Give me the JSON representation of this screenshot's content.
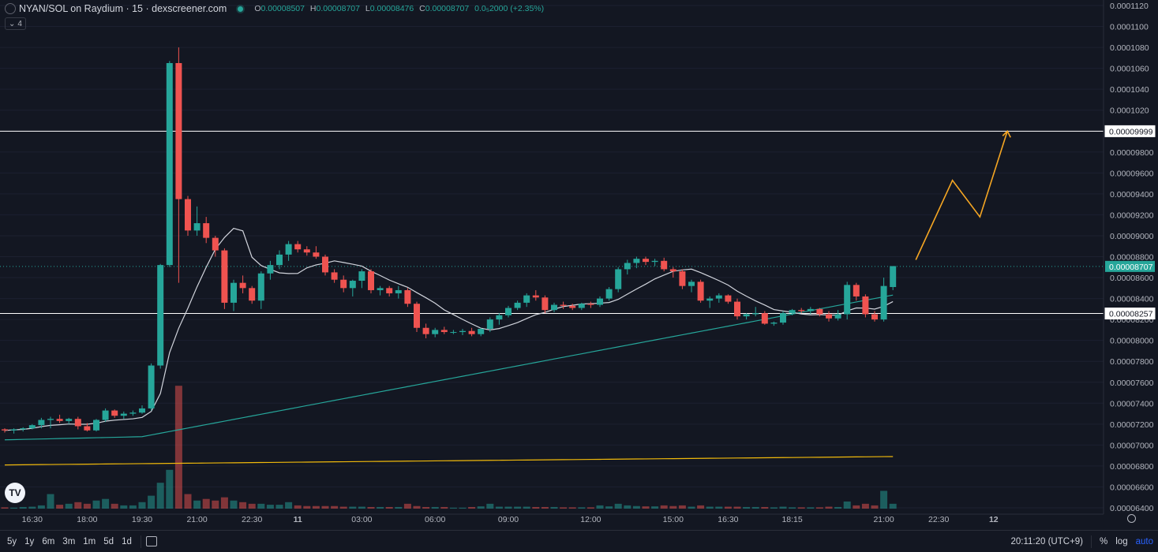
{
  "header": {
    "symbol": "NYAN/SOL on Raydium · 15 · dexscreener.com",
    "o_label": "O",
    "o_value": "0.00008507",
    "h_label": "H",
    "h_value": "0.00008707",
    "l_label": "L",
    "l_value": "0.00008476",
    "c_label": "C",
    "c_value": "0.00008707",
    "change": "0.0₅2000 (+2.35%)"
  },
  "indicator_toggle": "4",
  "bottom": {
    "ranges": [
      "5y",
      "1y",
      "6m",
      "3m",
      "1m",
      "5d",
      "1d"
    ],
    "clock": "20:11:20 (UTC+9)",
    "percent": "%",
    "log": "log",
    "auto": "auto"
  },
  "logo_text": "TV",
  "colors": {
    "background": "#131722",
    "up": "#26a69a",
    "down": "#ef5350",
    "ma_fast": "#d1d4dc",
    "ma_mid": "#26a69a",
    "ma_slow": "#f0b90b",
    "projection": "#f5a623"
  },
  "chart_data": {
    "type": "candlestick",
    "yticks": [
      "0.0001120",
      "0.0001100",
      "0.0001080",
      "0.0001060",
      "0.0001040",
      "0.0001020",
      "0.0001000",
      "0.00009800",
      "0.00009600",
      "0.00009400",
      "0.00009200",
      "0.00009000",
      "0.00008800",
      "0.00008600",
      "0.00008400",
      "0.00008200",
      "0.00008000",
      "0.00007800",
      "0.00007600",
      "0.00007400",
      "0.00007200",
      "0.00007000",
      "0.00006800",
      "0.00006600",
      "0.00006400"
    ],
    "ytick_values": [
      0.000112,
      0.00011,
      0.000108,
      0.000106,
      0.000104,
      0.000102,
      0.0001,
      9.8e-05,
      9.6e-05,
      9.4e-05,
      9.2e-05,
      9e-05,
      8.8e-05,
      8.6e-05,
      8.4e-05,
      8.2e-05,
      8e-05,
      7.8e-05,
      7.6e-05,
      7.4e-05,
      7.2e-05,
      7e-05,
      6.8e-05,
      6.6e-05,
      6.4e-05
    ],
    "ylim": [
      6.4e-05,
      0.0001125
    ],
    "xticks": [
      "16:30",
      "18:00",
      "19:30",
      "21:00",
      "22:30",
      "11",
      "03:00",
      "06:00",
      "09:00",
      "12:00",
      "15:00",
      "16:30",
      "18:15",
      "21:00",
      "22:30",
      "12"
    ],
    "xtick_index": [
      3,
      9,
      15,
      21,
      27,
      32,
      39,
      47,
      55,
      64,
      73,
      79,
      86,
      96,
      102,
      108
    ],
    "horizontal_lines": [
      {
        "price": 9.999e-05,
        "label": "0.00009999"
      },
      {
        "price": 8.257e-05,
        "label": "0.00008257"
      }
    ],
    "last_price": {
      "price": 8.707e-05,
      "label": "0.00008707"
    },
    "candles": [
      [
        7.15e-05,
        7.16e-05,
        7.12e-05,
        7.14e-05,
        0.4
      ],
      [
        7.14e-05,
        7.16e-05,
        7.11e-05,
        7.15e-05,
        0.3
      ],
      [
        7.15e-05,
        7.17e-05,
        7.13e-05,
        7.16e-05,
        0.5
      ],
      [
        7.16e-05,
        7.2e-05,
        7.15e-05,
        7.19e-05,
        0.6
      ],
      [
        7.19e-05,
        7.26e-05,
        7.16e-05,
        7.24e-05,
        1.0
      ],
      [
        7.24e-05,
        7.27e-05,
        7.16e-05,
        7.25e-05,
        4.5
      ],
      [
        7.25e-05,
        7.29e-05,
        7.21e-05,
        7.23e-05,
        1.2
      ],
      [
        7.23e-05,
        7.26e-05,
        7.2e-05,
        7.25e-05,
        1.5
      ],
      [
        7.25e-05,
        7.27e-05,
        7.15e-05,
        7.18e-05,
        2.0
      ],
      [
        7.18e-05,
        7.21e-05,
        7.13e-05,
        7.14e-05,
        1.5
      ],
      [
        7.14e-05,
        7.25e-05,
        7.13e-05,
        7.24e-05,
        2.5
      ],
      [
        7.24e-05,
        7.35e-05,
        7.22e-05,
        7.33e-05,
        3.0
      ],
      [
        7.33e-05,
        7.34e-05,
        7.26e-05,
        7.28e-05,
        1.5
      ],
      [
        7.28e-05,
        7.32e-05,
        7.25e-05,
        7.3e-05,
        1.0
      ],
      [
        7.3e-05,
        7.33e-05,
        7.28e-05,
        7.31e-05,
        1.0
      ],
      [
        7.31e-05,
        7.38e-05,
        7.3e-05,
        7.35e-05,
        2.0
      ],
      [
        7.35e-05,
        7.78e-05,
        7.33e-05,
        7.76e-05,
        4.0
      ],
      [
        7.76e-05,
        8.73e-05,
        7.73e-05,
        8.72e-05,
        8.0
      ],
      [
        8.72e-05,
        0.0001067,
        8.7e-05,
        0.0001065,
        12.0
      ],
      [
        0.0001065,
        0.000108,
        8.55e-05,
        9.35e-05,
        38.0
      ],
      [
        9.35e-05,
        9.38e-05,
        9e-05,
        9.05e-05,
        4.5
      ],
      [
        9.05e-05,
        9.28e-05,
        9e-05,
        9.12e-05,
        2.5
      ],
      [
        9.12e-05,
        9.18e-05,
        8.93e-05,
        8.98e-05,
        3.0
      ],
      [
        8.98e-05,
        9e-05,
        8.8e-05,
        8.86e-05,
        2.5
      ],
      [
        8.86e-05,
        8.88e-05,
        8.3e-05,
        8.36e-05,
        3.5
      ],
      [
        8.36e-05,
        8.58e-05,
        8.28e-05,
        8.55e-05,
        2.5
      ],
      [
        8.55e-05,
        8.62e-05,
        8.45e-05,
        8.5e-05,
        2.0
      ],
      [
        8.5e-05,
        8.52e-05,
        8.35e-05,
        8.38e-05,
        1.5
      ],
      [
        8.38e-05,
        8.66e-05,
        8.3e-05,
        8.64e-05,
        1.5
      ],
      [
        8.64e-05,
        8.76e-05,
        8.58e-05,
        8.72e-05,
        1.2
      ],
      [
        8.72e-05,
        8.86e-05,
        8.68e-05,
        8.82e-05,
        1.2
      ],
      [
        8.82e-05,
        8.95e-05,
        8.76e-05,
        8.92e-05,
        2.0
      ],
      [
        8.92e-05,
        8.95e-05,
        8.84e-05,
        8.87e-05,
        1.0
      ],
      [
        8.87e-05,
        8.9e-05,
        8.81e-05,
        8.84e-05,
        0.8
      ],
      [
        8.84e-05,
        8.9e-05,
        8.78e-05,
        8.8e-05,
        0.8
      ],
      [
        8.8e-05,
        8.82e-05,
        8.62e-05,
        8.65e-05,
        0.8
      ],
      [
        8.65e-05,
        8.68e-05,
        8.55e-05,
        8.58e-05,
        0.8
      ],
      [
        8.58e-05,
        8.62e-05,
        8.46e-05,
        8.5e-05,
        0.6
      ],
      [
        8.5e-05,
        8.58e-05,
        8.42e-05,
        8.57e-05,
        0.6
      ],
      [
        8.57e-05,
        8.68e-05,
        8.5e-05,
        8.66e-05,
        0.6
      ],
      [
        8.66e-05,
        8.68e-05,
        8.45e-05,
        8.48e-05,
        0.5
      ],
      [
        8.48e-05,
        8.52e-05,
        8.43e-05,
        8.5e-05,
        0.5
      ],
      [
        8.5e-05,
        8.52e-05,
        8.42e-05,
        8.45e-05,
        0.5
      ],
      [
        8.45e-05,
        8.52e-05,
        8.4e-05,
        8.48e-05,
        0.5
      ],
      [
        8.48e-05,
        8.5e-05,
        8.32e-05,
        8.35e-05,
        1.5
      ],
      [
        8.35e-05,
        8.37e-05,
        8.08e-05,
        8.12e-05,
        0.8
      ],
      [
        8.12e-05,
        8.16e-05,
        8.02e-05,
        8.06e-05,
        0.5
      ],
      [
        8.06e-05,
        8.12e-05,
        8.03e-05,
        8.1e-05,
        0.5
      ],
      [
        8.1e-05,
        8.13e-05,
        8.06e-05,
        8.08e-05,
        0.5
      ],
      [
        8.08e-05,
        8.1e-05,
        8.06e-05,
        8.08e-05,
        0.3
      ],
      [
        8.08e-05,
        8.11e-05,
        8.05e-05,
        8.09e-05,
        0.3
      ],
      [
        8.09e-05,
        8.12e-05,
        8.04e-05,
        8.06e-05,
        0.5
      ],
      [
        8.06e-05,
        8.12e-05,
        8.04e-05,
        8.11e-05,
        0.7
      ],
      [
        8.11e-05,
        8.22e-05,
        8.08e-05,
        8.2e-05,
        1.5
      ],
      [
        8.2e-05,
        8.26e-05,
        8.15e-05,
        8.24e-05,
        0.6
      ],
      [
        8.24e-05,
        8.33e-05,
        8.22e-05,
        8.31e-05,
        0.6
      ],
      [
        8.31e-05,
        8.38e-05,
        8.29e-05,
        8.36e-05,
        0.6
      ],
      [
        8.36e-05,
        8.45e-05,
        8.32e-05,
        8.43e-05,
        0.6
      ],
      [
        8.43e-05,
        8.48e-05,
        8.38e-05,
        8.41e-05,
        0.5
      ],
      [
        8.41e-05,
        8.43e-05,
        8.26e-05,
        8.29e-05,
        0.5
      ],
      [
        8.29e-05,
        8.36e-05,
        8.27e-05,
        8.34e-05,
        0.5
      ],
      [
        8.34e-05,
        8.37e-05,
        8.3e-05,
        8.33e-05,
        0.4
      ],
      [
        8.33e-05,
        8.35e-05,
        8.29e-05,
        8.31e-05,
        0.4
      ],
      [
        8.31e-05,
        8.36e-05,
        8.29e-05,
        8.35e-05,
        0.4
      ],
      [
        8.35e-05,
        8.37e-05,
        8.31e-05,
        8.34e-05,
        0.4
      ],
      [
        8.34e-05,
        8.42e-05,
        8.32e-05,
        8.4e-05,
        1.0
      ],
      [
        8.4e-05,
        8.51e-05,
        8.38e-05,
        8.49e-05,
        0.7
      ],
      [
        8.49e-05,
        8.7e-05,
        8.46e-05,
        8.68e-05,
        1.5
      ],
      [
        8.68e-05,
        8.77e-05,
        8.63e-05,
        8.74e-05,
        1.0
      ],
      [
        8.74e-05,
        8.8e-05,
        8.69e-05,
        8.78e-05,
        0.8
      ],
      [
        8.78e-05,
        8.8e-05,
        8.72e-05,
        8.75e-05,
        0.7
      ],
      [
        8.75e-05,
        8.78e-05,
        8.71e-05,
        8.76e-05,
        0.7
      ],
      [
        8.76e-05,
        8.79e-05,
        8.66e-05,
        8.68e-05,
        1.0
      ],
      [
        8.68e-05,
        8.7e-05,
        8.6e-05,
        8.66e-05,
        0.8
      ],
      [
        8.66e-05,
        8.68e-05,
        8.49e-05,
        8.52e-05,
        1.0
      ],
      [
        8.52e-05,
        8.58e-05,
        8.46e-05,
        8.56e-05,
        0.6
      ],
      [
        8.56e-05,
        8.58e-05,
        8.36e-05,
        8.38e-05,
        1.0
      ],
      [
        8.38e-05,
        8.42e-05,
        8.31e-05,
        8.4e-05,
        0.6
      ],
      [
        8.4e-05,
        8.45e-05,
        8.36e-05,
        8.43e-05,
        0.6
      ],
      [
        8.43e-05,
        8.44e-05,
        8.35e-05,
        8.37e-05,
        0.6
      ],
      [
        8.37e-05,
        8.4e-05,
        8.2e-05,
        8.23e-05,
        0.6
      ],
      [
        8.23e-05,
        8.26e-05,
        8.2e-05,
        8.25e-05,
        0.5
      ],
      [
        8.25e-05,
        8.32e-05,
        8.23e-05,
        8.26e-05,
        0.5
      ],
      [
        8.26e-05,
        8.28e-05,
        8.15e-05,
        8.16e-05,
        0.5
      ],
      [
        8.16e-05,
        8.18e-05,
        8.14e-05,
        8.17e-05,
        0.4
      ],
      [
        8.17e-05,
        8.28e-05,
        8.15e-05,
        8.26e-05,
        0.6
      ],
      [
        8.26e-05,
        8.3e-05,
        8.24e-05,
        8.29e-05,
        0.4
      ],
      [
        8.29e-05,
        8.31e-05,
        8.26e-05,
        8.28e-05,
        0.4
      ],
      [
        8.28e-05,
        8.32e-05,
        8.25e-05,
        8.3e-05,
        0.4
      ],
      [
        8.3e-05,
        8.31e-05,
        8.23e-05,
        8.25e-05,
        0.4
      ],
      [
        8.25e-05,
        8.28e-05,
        8.18e-05,
        8.21e-05,
        0.6
      ],
      [
        8.21e-05,
        8.29e-05,
        8.19e-05,
        8.25e-05,
        0.5
      ],
      [
        8.25e-05,
        8.56e-05,
        8.2e-05,
        8.53e-05,
        2.2
      ],
      [
        8.53e-05,
        8.55e-05,
        8.38e-05,
        8.42e-05,
        1.0
      ],
      [
        8.42e-05,
        8.44e-05,
        8.22e-05,
        8.25e-05,
        1.5
      ],
      [
        8.25e-05,
        8.28e-05,
        8.18e-05,
        8.2e-05,
        1.0
      ],
      [
        8.2e-05,
        8.6e-05,
        8.18e-05,
        8.52e-05,
        5.5
      ],
      [
        8.51e-05,
        8.71e-05,
        8.48e-05,
        8.71e-05,
        1.5
      ]
    ],
    "projection_path": [
      [
        99.5,
        8.77e-05
      ],
      [
        103.5,
        9.53e-05
      ],
      [
        106.5,
        9.18e-05
      ],
      [
        109.5,
        0.0001
      ]
    ],
    "projection_future_index": [
      99.5,
      103.5,
      106.5,
      109.5
    ],
    "future_xticks_index": [
      96,
      102,
      108
    ]
  }
}
